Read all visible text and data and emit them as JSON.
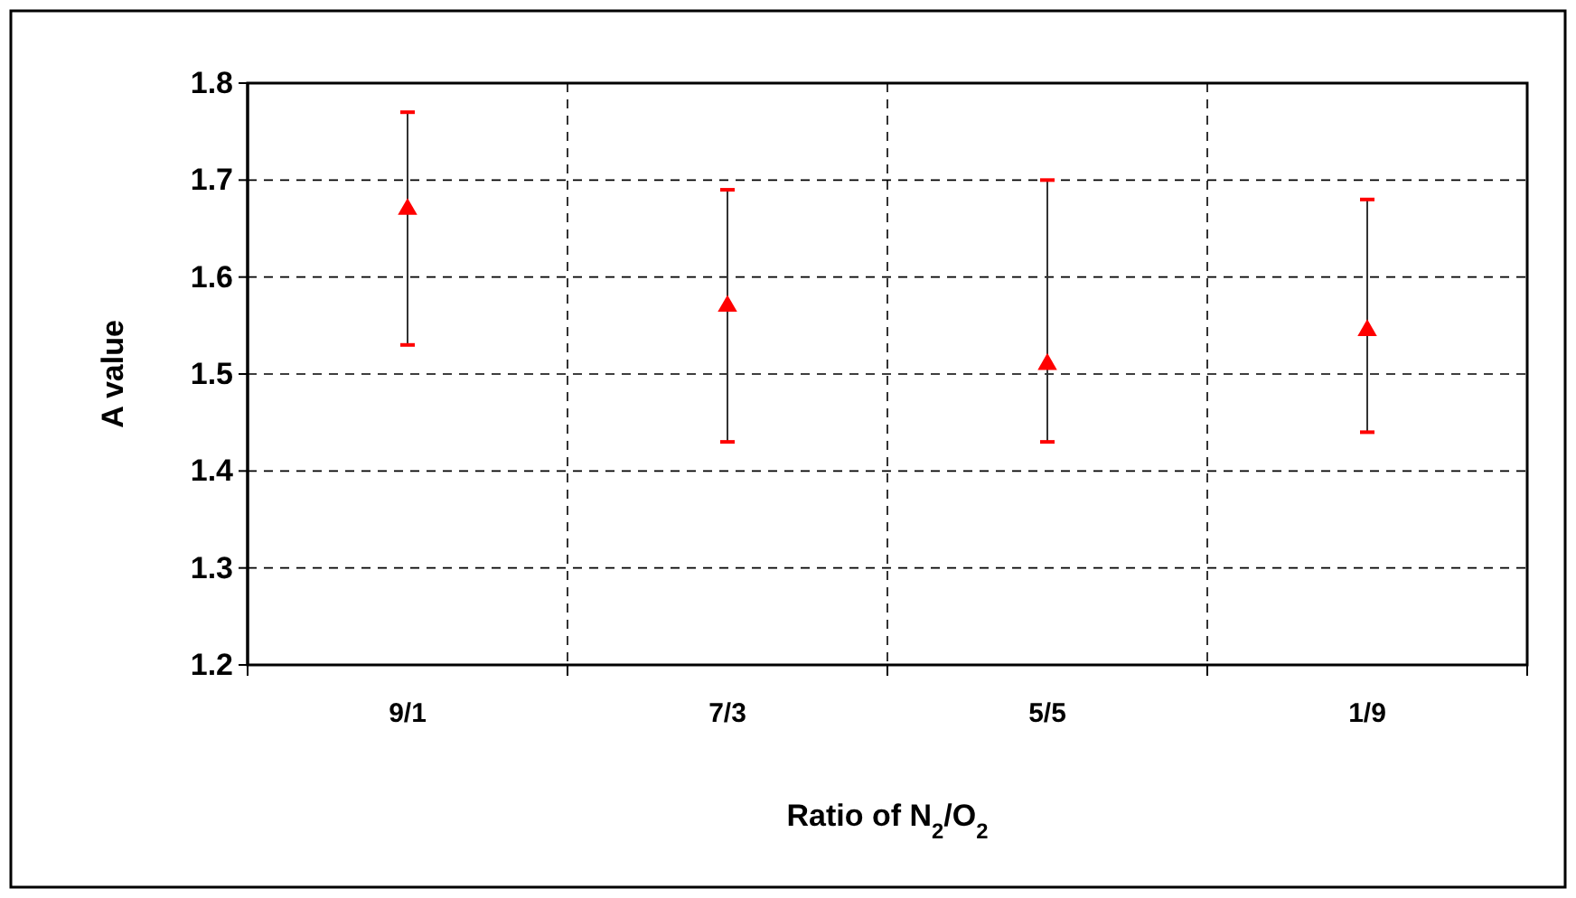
{
  "chart_data": {
    "type": "scatter",
    "xlabel": "Ratio of N$_{2}$/O$_{2}$",
    "ylabel": "A value",
    "categories": [
      "9/1",
      "7/3",
      "5/5",
      "1/9"
    ],
    "series": [
      {
        "color": "#ff0000",
        "values": [
          1.67,
          1.57,
          1.51,
          1.545
        ],
        "errors": [
          [
            1.53,
            1.77
          ],
          [
            1.43,
            1.69
          ],
          [
            1.43,
            1.7
          ],
          [
            1.44,
            1.68
          ]
        ]
      }
    ],
    "ylim": [
      1.2,
      1.8
    ],
    "yticks": [
      1.2,
      1.3,
      1.4,
      1.5,
      1.6,
      1.7,
      1.8
    ],
    "grid": true,
    "marker": "triangle"
  }
}
